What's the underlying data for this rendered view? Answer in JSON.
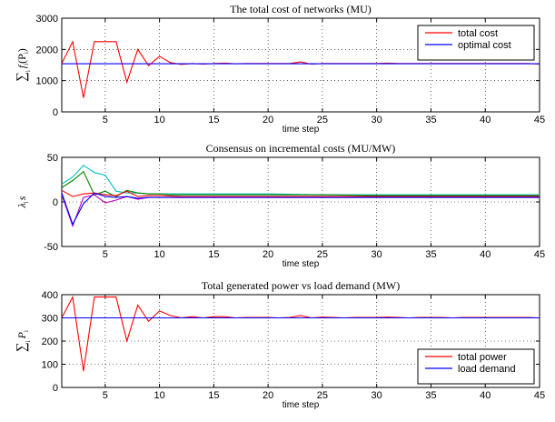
{
  "chart_data": [
    {
      "type": "line",
      "title": "The total cost of networks (MU)",
      "xlabel": "time step",
      "ylabel": "∑ f_i(P_i)",
      "ylabel_parts": {
        "sum": "∑",
        "sub": "i",
        "body": "f",
        "body_sub": "i",
        "arg": "(P",
        "arg_sub": "i",
        "close": ")"
      },
      "xlim": [
        1,
        45
      ],
      "ylim": [
        0,
        3000
      ],
      "xticks": [
        5,
        10,
        15,
        20,
        25,
        30,
        35,
        40,
        45
      ],
      "yticks": [
        0,
        1000,
        2000,
        3000
      ],
      "grid": true,
      "legend": "top-right",
      "series": [
        {
          "name": "total cost",
          "color": "#ff0000",
          "x": [
            1,
            2,
            3,
            4,
            5,
            6,
            7,
            8,
            9,
            10,
            11,
            12,
            13,
            14,
            15,
            16,
            17,
            18,
            19,
            20,
            21,
            22,
            23,
            24,
            25,
            26,
            27,
            28,
            29,
            30,
            31,
            32,
            33,
            34,
            35,
            36,
            37,
            38,
            39,
            40,
            41,
            42,
            43,
            44,
            45
          ],
          "y": [
            1550,
            2250,
            450,
            2250,
            2250,
            2250,
            950,
            2000,
            1480,
            1780,
            1580,
            1520,
            1550,
            1530,
            1550,
            1560,
            1540,
            1550,
            1550,
            1550,
            1550,
            1550,
            1600,
            1530,
            1550,
            1550,
            1550,
            1550,
            1550,
            1550,
            1560,
            1550,
            1550,
            1550,
            1550,
            1550,
            1550,
            1550,
            1550,
            1550,
            1550,
            1550,
            1550,
            1550,
            1530
          ]
        },
        {
          "name": "optimal cost",
          "color": "#0000ff",
          "x": [
            1,
            45
          ],
          "y": [
            1540,
            1540
          ]
        }
      ]
    },
    {
      "type": "line",
      "title": "Consensus on incremental costs (MU/MW)",
      "xlabel": "time step",
      "ylabel": "λ_i s",
      "ylabel_parts": {
        "body": "λ",
        "sub": "i",
        "tail": "s"
      },
      "xlim": [
        1,
        45
      ],
      "ylim": [
        -50,
        50
      ],
      "xticks": [
        5,
        10,
        15,
        20,
        25,
        30,
        35,
        40,
        45
      ],
      "yticks": [
        -50,
        0,
        50
      ],
      "grid": true,
      "series": [
        {
          "color": "#00bfbf",
          "x": [
            1,
            2,
            3,
            4,
            5,
            6,
            7,
            8,
            9,
            10,
            11,
            12,
            13,
            15,
            20,
            25,
            30,
            35,
            40,
            45
          ],
          "y": [
            20,
            28,
            41,
            33,
            30,
            12,
            10,
            10,
            9,
            9,
            9,
            9,
            9,
            9,
            9,
            8,
            8,
            8,
            8,
            8
          ]
        },
        {
          "color": "#008000",
          "x": [
            1,
            2,
            3,
            4,
            5,
            6,
            7,
            8,
            9,
            10,
            11,
            12,
            15,
            20,
            25,
            30,
            35,
            40,
            45
          ],
          "y": [
            16,
            24,
            34,
            8,
            12,
            6,
            13,
            10,
            9,
            9,
            8,
            8,
            8,
            8,
            8,
            7,
            7,
            7,
            7
          ]
        },
        {
          "color": "#ff0000",
          "x": [
            1,
            2,
            3,
            4,
            5,
            6,
            7,
            8,
            9,
            10,
            12,
            15,
            20,
            25,
            30,
            35,
            40,
            45
          ],
          "y": [
            13,
            6,
            9,
            10,
            8,
            7,
            12,
            6,
            7,
            7,
            6,
            6,
            6,
            6,
            6,
            6,
            6,
            6
          ]
        },
        {
          "color": "#bf00bf",
          "x": [
            1,
            2,
            3,
            4,
            5,
            6,
            7,
            8,
            9,
            10,
            12,
            15,
            20,
            25,
            30,
            35,
            40,
            45
          ],
          "y": [
            8,
            -27,
            5,
            8,
            -1,
            2,
            6,
            3,
            5,
            5,
            5,
            5,
            5,
            5,
            5,
            5,
            5,
            5
          ]
        },
        {
          "color": "#0000ff",
          "x": [
            1,
            2,
            3,
            4,
            5,
            6,
            7,
            8,
            9,
            10,
            12,
            15,
            20,
            25,
            30,
            35,
            40,
            45
          ],
          "y": [
            10,
            -25,
            -2,
            10,
            6,
            5,
            6,
            4,
            5,
            5,
            5,
            5,
            5,
            5,
            5,
            5,
            5,
            5
          ]
        }
      ]
    },
    {
      "type": "line",
      "title": "Total generated power vs load demand (MW)",
      "xlabel": "time step",
      "ylabel": "∑ P_i",
      "ylabel_parts": {
        "sum": "∑",
        "sub": "i",
        "body": "P",
        "body_sub": "i"
      },
      "xlim": [
        1,
        45
      ],
      "ylim": [
        0,
        400
      ],
      "xticks": [
        5,
        10,
        15,
        20,
        25,
        30,
        35,
        40,
        45
      ],
      "yticks": [
        0,
        100,
        200,
        300,
        400
      ],
      "grid": true,
      "legend": "bottom-right",
      "series": [
        {
          "name": "total power",
          "color": "#ff0000",
          "x": [
            1,
            2,
            3,
            4,
            5,
            6,
            7,
            8,
            9,
            10,
            11,
            12,
            13,
            14,
            15,
            16,
            17,
            18,
            19,
            20,
            21,
            22,
            23,
            24,
            25,
            26,
            27,
            28,
            29,
            30,
            31,
            32,
            33,
            34,
            35,
            36,
            37,
            38,
            39,
            40,
            41,
            42,
            43,
            44,
            45
          ],
          "y": [
            300,
            390,
            70,
            390,
            390,
            390,
            200,
            355,
            285,
            330,
            310,
            300,
            305,
            300,
            305,
            305,
            300,
            302,
            302,
            302,
            300,
            302,
            310,
            300,
            303,
            302,
            300,
            302,
            302,
            302,
            303,
            302,
            300,
            302,
            302,
            302,
            300,
            302,
            302,
            302,
            302,
            302,
            302,
            302,
            300
          ]
        },
        {
          "name": "load demand",
          "color": "#0000ff",
          "x": [
            1,
            45
          ],
          "y": [
            300,
            300
          ]
        }
      ]
    }
  ]
}
